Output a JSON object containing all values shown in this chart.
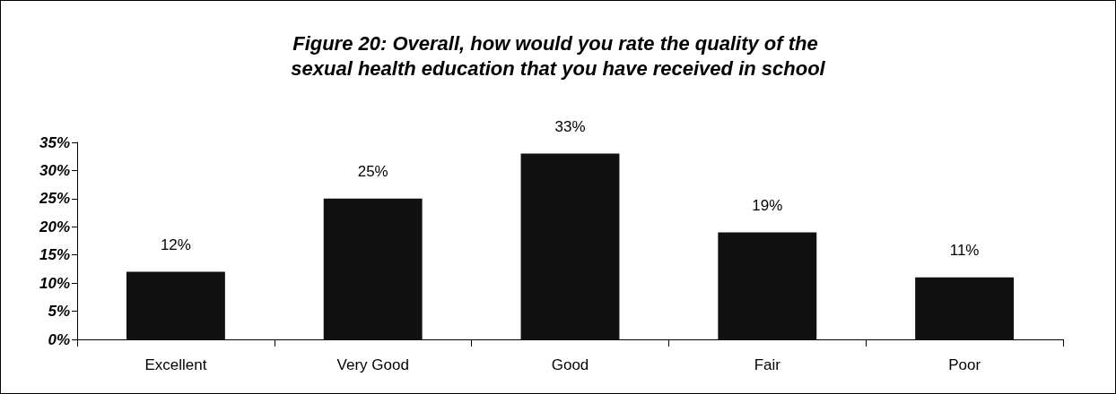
{
  "chart_data": {
    "type": "bar",
    "title": "Figure 20: Overall, how would you rate the quality of the sexual health education that you have received in school",
    "categories": [
      "Excellent",
      "Very Good",
      "Good",
      "Fair",
      "Poor"
    ],
    "values": [
      12,
      25,
      33,
      19,
      11
    ],
    "value_labels": [
      "12%",
      "25%",
      "33%",
      "19%",
      "11%"
    ],
    "color": "#111111",
    "ylim": [
      0,
      35
    ],
    "yticks": [
      {
        "value": 0,
        "label": "0%"
      },
      {
        "value": 5,
        "label": "5%"
      },
      {
        "value": 10,
        "label": "10%"
      },
      {
        "value": 15,
        "label": "15%"
      },
      {
        "value": 20,
        "label": "20%"
      },
      {
        "value": 25,
        "label": "25%"
      },
      {
        "value": 30,
        "label": "30%"
      },
      {
        "value": 35,
        "label": "35%"
      }
    ],
    "grid": false
  }
}
